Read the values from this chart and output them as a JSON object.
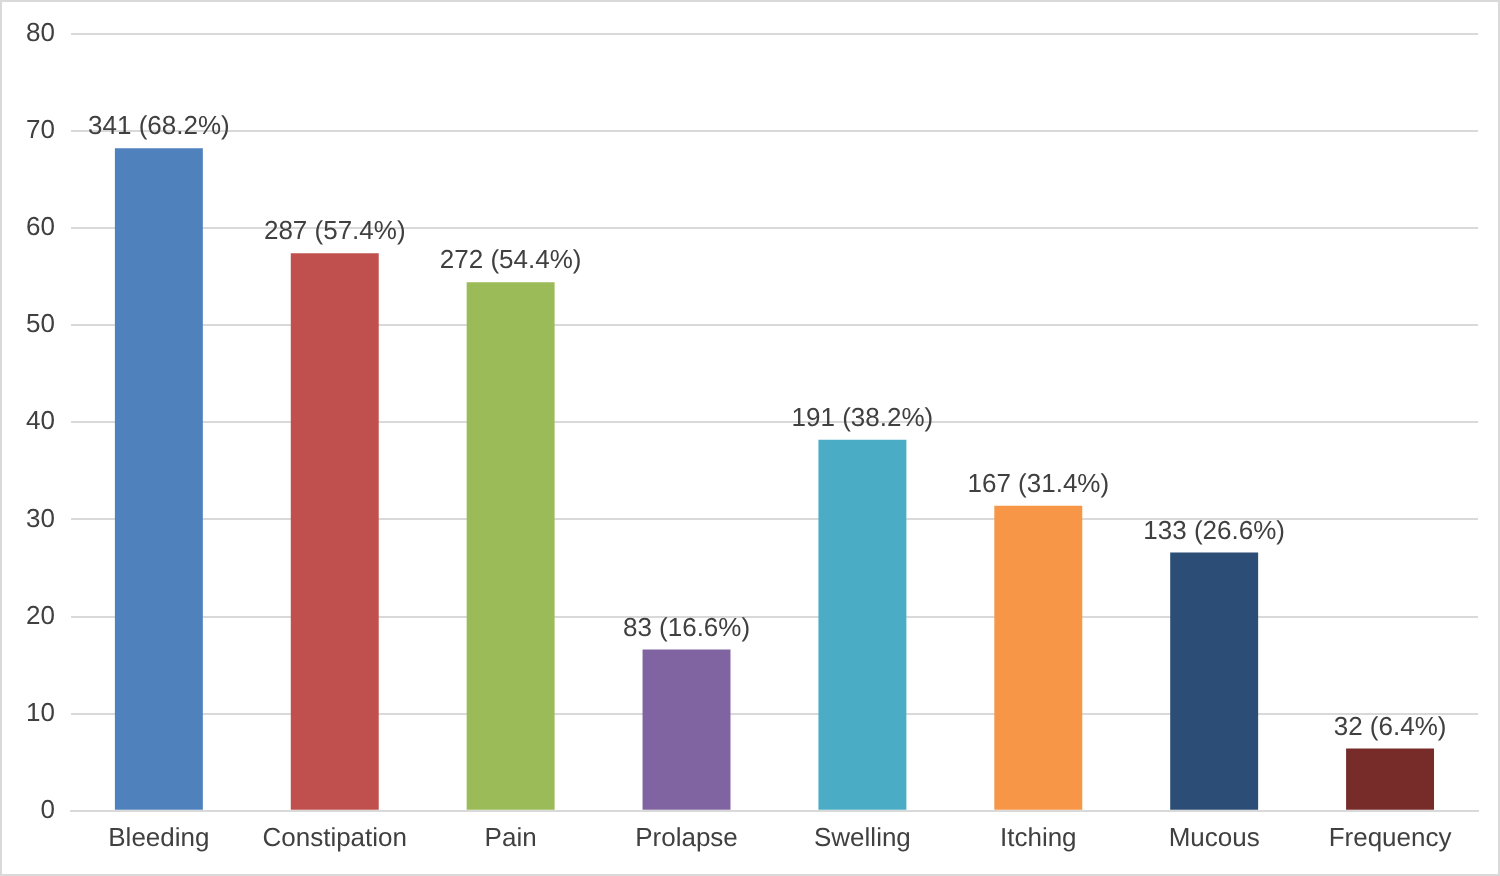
{
  "chart_data": {
    "type": "bar",
    "categories": [
      "Bleeding",
      "Constipation",
      "Pain",
      "Prolapse",
      "Swelling",
      "Itching",
      "Mucous",
      "Frequency"
    ],
    "values": [
      68.2,
      57.4,
      54.4,
      16.6,
      38.2,
      31.4,
      26.6,
      6.4
    ],
    "colors": [
      "#4f81bd",
      "#c0504d",
      "#9bbb59",
      "#8064a2",
      "#4bacc6",
      "#f79646",
      "#2c4d75",
      "#772c2a"
    ],
    "value_labels": [
      "341 (68.2%)",
      "287 (57.4%)",
      "272 (54.4%)",
      "83 (16.6%)",
      "191 (38.2%)",
      "167 (31.4%)",
      "133 (26.6%)",
      "32 (6.4%)"
    ],
    "ylim": [
      0,
      80
    ],
    "yticks": [
      0,
      10,
      20,
      30,
      40,
      50,
      60,
      70,
      80
    ],
    "grid": "y",
    "legend": false
  }
}
